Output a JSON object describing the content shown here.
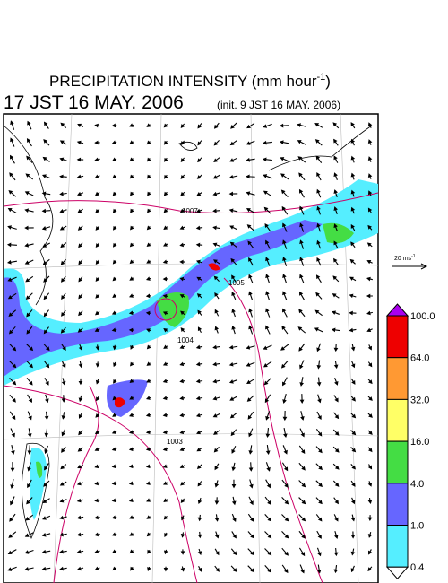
{
  "header": {
    "title": "PRECIPITATION INTENSITY (mm hour",
    "title_exponent": "-1",
    "title_close": ")",
    "valid_time": "17 JST 16 MAY. 2006",
    "init_time": "(init. 9 JST 16 MAY. 2006)"
  },
  "map": {
    "contour_labels": [
      "1007",
      "1005",
      "1004",
      "1003"
    ]
  },
  "wind_scale": {
    "label": "20 ms",
    "exponent": "-1"
  },
  "colorbar": {
    "labels": [
      "100.0",
      "64.0",
      "32.0",
      "16.0",
      "4.0",
      "1.0",
      "0.4"
    ],
    "colors": [
      "#ee0000",
      "#ff9933",
      "#ffff66",
      "#44dd44",
      "#6666ff",
      "#55eeff"
    ],
    "top_color": "#aa00ee",
    "bottom_color": "#ffffff"
  }
}
